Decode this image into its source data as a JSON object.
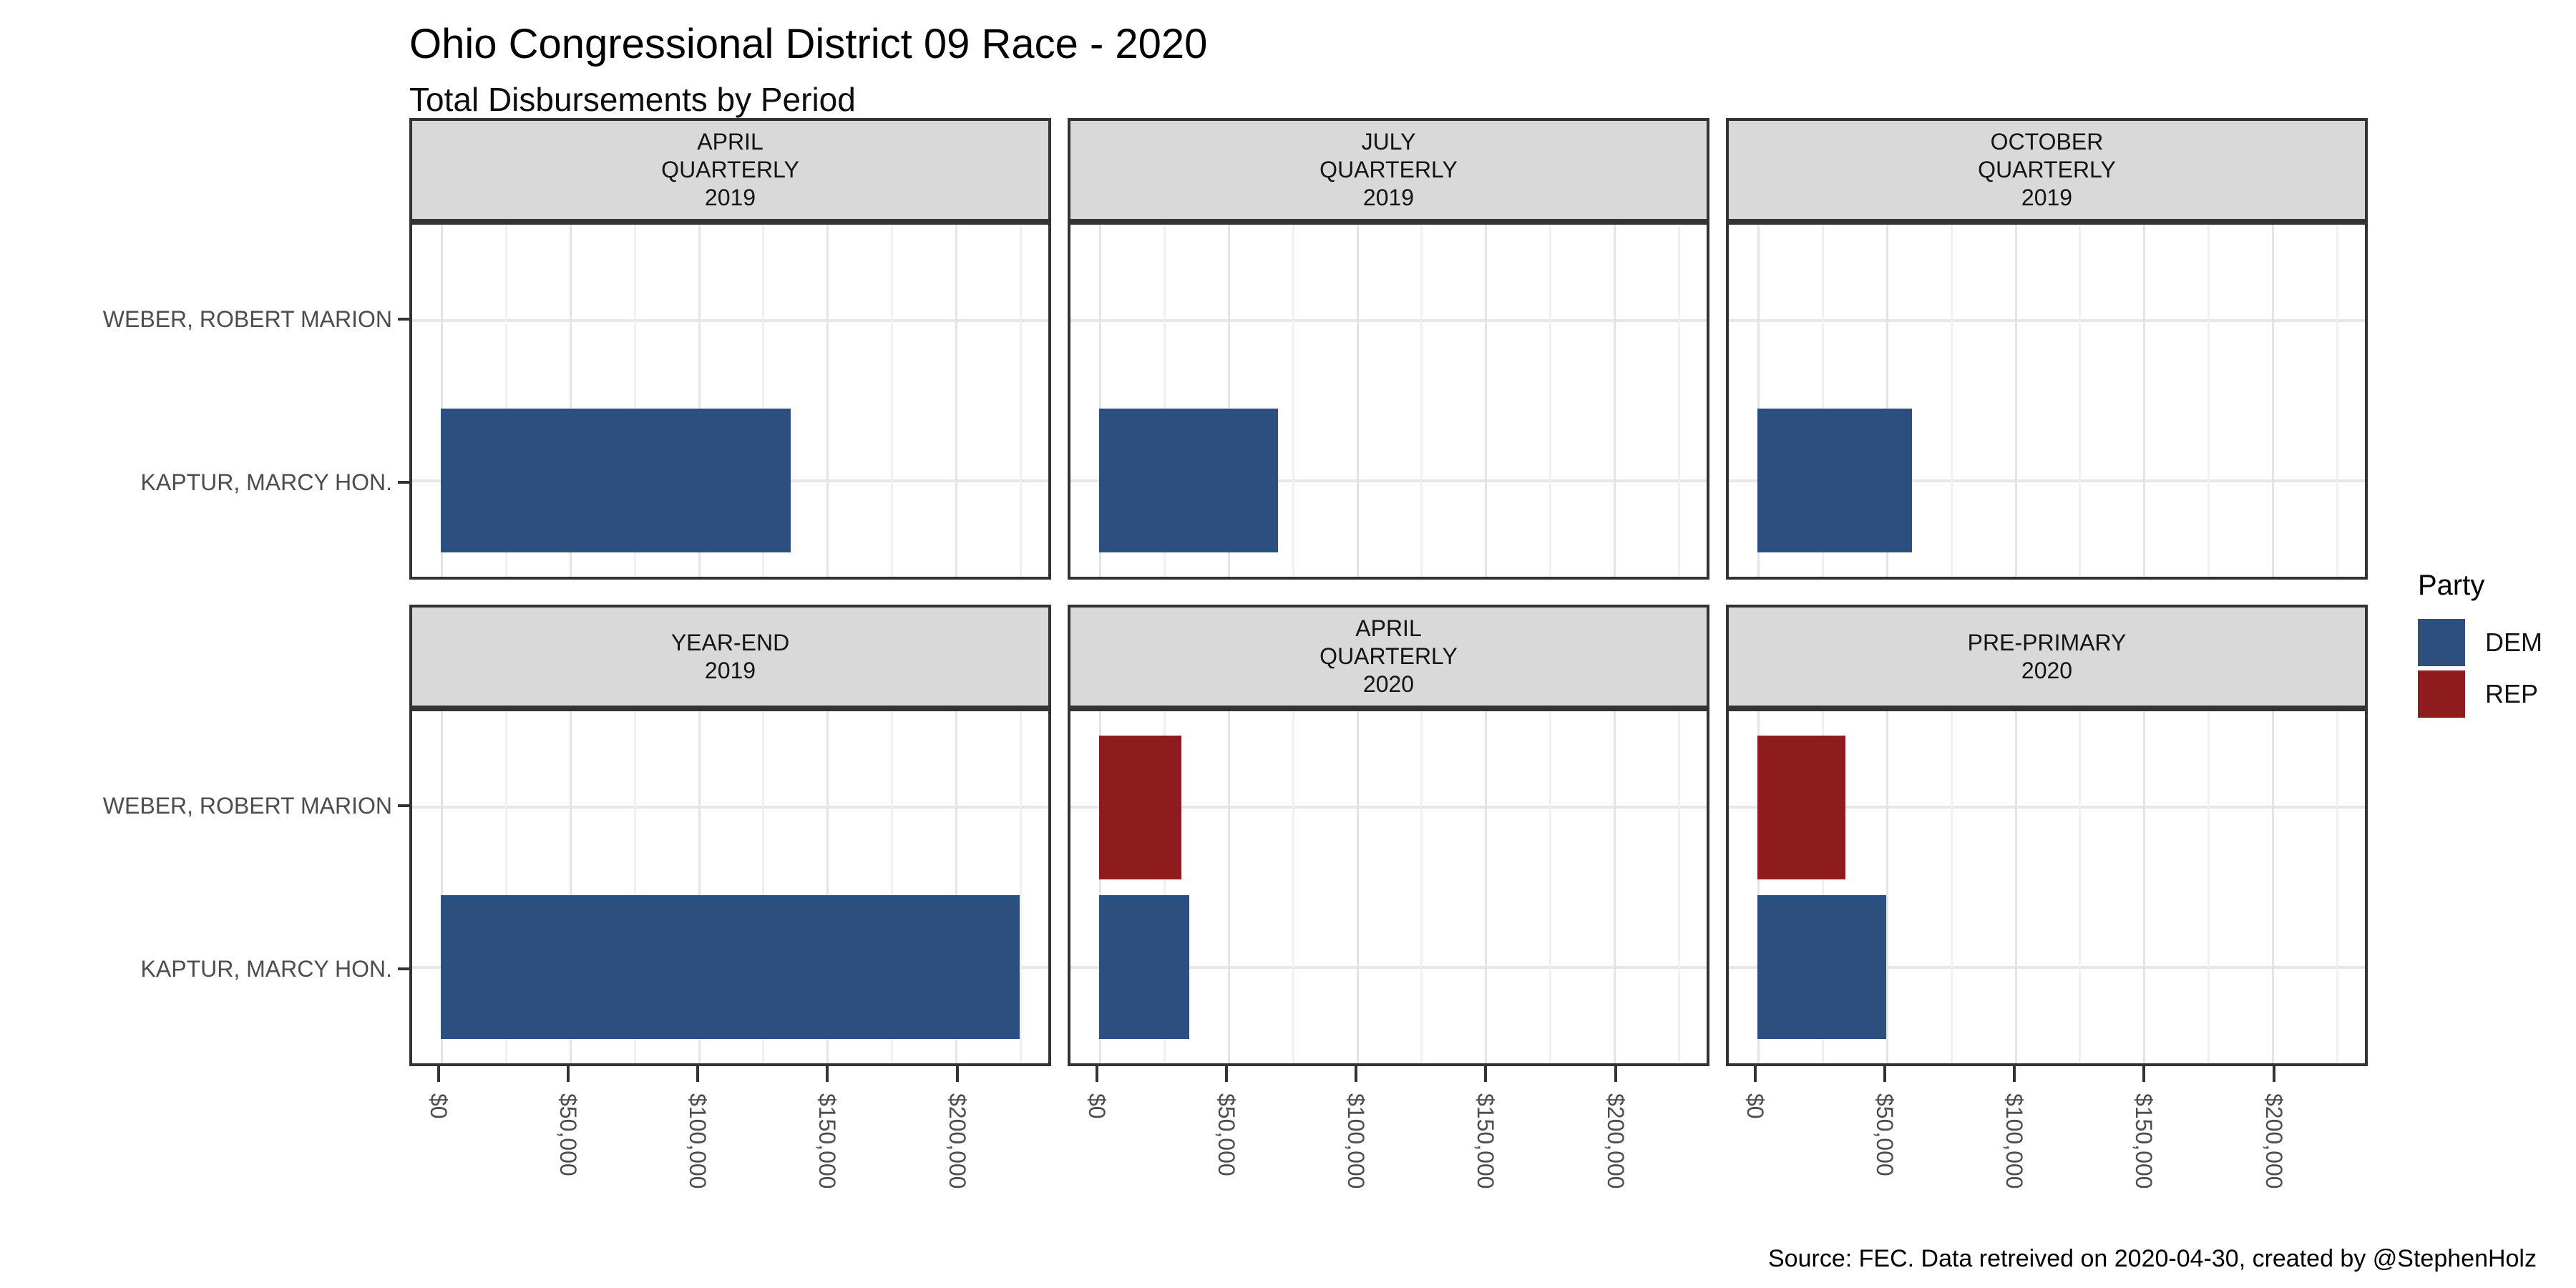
{
  "chart_data": {
    "type": "bar",
    "orientation": "horizontal",
    "title": "Ohio Congressional District 09 Race - 2020",
    "subtitle": "Total Disbursements by Period",
    "caption": "Source: FEC. Data retreived on 2020-04-30, created by @StephenHolz",
    "categories": [
      "WEBER, ROBERT MARION",
      "KAPTUR, MARCY HON."
    ],
    "x_axis": {
      "tick_labels": [
        "$0",
        "$50,000",
        "$100,000",
        "$150,000",
        "$200,000"
      ],
      "tick_values": [
        0,
        50000,
        100000,
        150000,
        200000
      ],
      "minor_tick_values": [
        25000,
        75000,
        125000,
        175000,
        225000
      ],
      "range": [
        -11250,
        236250
      ],
      "grid": true
    },
    "facet_grid": {
      "rows": 2,
      "cols": 3
    },
    "legend": {
      "title": "Party",
      "position": "right",
      "entries": [
        {
          "label": "DEM",
          "color": "#2D4F80"
        },
        {
          "label": "REP",
          "color": "#8E1B1D"
        }
      ]
    },
    "facets": [
      {
        "label_lines": [
          "APRIL",
          "QUARTERLY",
          "2019"
        ],
        "bars": [
          {
            "candidate": "KAPTUR, MARCY HON.",
            "party": "DEM",
            "value": 136000
          }
        ]
      },
      {
        "label_lines": [
          "JULY",
          "QUARTERLY",
          "2019"
        ],
        "bars": [
          {
            "candidate": "KAPTUR, MARCY HON.",
            "party": "DEM",
            "value": 69500
          }
        ]
      },
      {
        "label_lines": [
          "OCTOBER",
          "QUARTERLY",
          "2019"
        ],
        "bars": [
          {
            "candidate": "KAPTUR, MARCY HON.",
            "party": "DEM",
            "value": 60000
          }
        ]
      },
      {
        "label_lines": [
          "YEAR-END",
          "2019"
        ],
        "bars": [
          {
            "candidate": "KAPTUR, MARCY HON.",
            "party": "DEM",
            "value": 225000
          }
        ]
      },
      {
        "label_lines": [
          "APRIL",
          "QUARTERLY",
          "2020"
        ],
        "bars": [
          {
            "candidate": "WEBER, ROBERT MARION",
            "party": "REP",
            "value": 32000
          },
          {
            "candidate": "KAPTUR, MARCY HON.",
            "party": "DEM",
            "value": 35000
          }
        ]
      },
      {
        "label_lines": [
          "PRE-PRIMARY",
          "2020"
        ],
        "bars": [
          {
            "candidate": "WEBER, ROBERT MARION",
            "party": "REP",
            "value": 34000
          },
          {
            "candidate": "KAPTUR, MARCY HON.",
            "party": "DEM",
            "value": 50000
          }
        ]
      }
    ]
  },
  "colors": {
    "dem": "#2D4F80",
    "rep": "#8E1B1D",
    "strip_bg": "#D9D9D9",
    "panel_border": "#333333",
    "grid_major": "#E4E4E4",
    "grid_minor": "#F1F1F1",
    "axis_text": "#4D4D4D"
  }
}
